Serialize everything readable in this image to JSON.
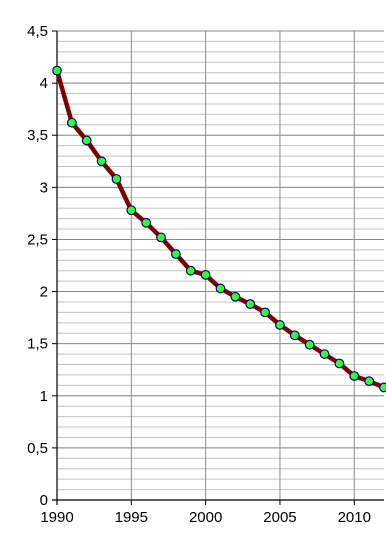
{
  "chart_data": {
    "type": "line",
    "title": "",
    "xlabel": "",
    "ylabel": "",
    "xlim": [
      1990,
      2012
    ],
    "ylim": [
      0,
      4.5
    ],
    "x_ticks": [
      {
        "value": 1990,
        "label": "1990"
      },
      {
        "value": 1995,
        "label": "1995"
      },
      {
        "value": 2000,
        "label": "2000"
      },
      {
        "value": 2005,
        "label": "2005"
      },
      {
        "value": 2010,
        "label": "2010"
      }
    ],
    "y_ticks": [
      {
        "value": 0,
        "label": "0"
      },
      {
        "value": 0.5,
        "label": "0,5"
      },
      {
        "value": 1,
        "label": "1"
      },
      {
        "value": 1.5,
        "label": "1,5"
      },
      {
        "value": 2,
        "label": "2"
      },
      {
        "value": 2.5,
        "label": "2,5"
      },
      {
        "value": 3,
        "label": "3"
      },
      {
        "value": 3.5,
        "label": "3,5"
      },
      {
        "value": 4,
        "label": "4"
      },
      {
        "value": 4.5,
        "label": "4,5"
      }
    ],
    "grid": {
      "major_x": true,
      "major_y": true,
      "minor_y": true,
      "minor_y_step": 0.1
    },
    "legend": "none",
    "series": [
      {
        "line_color": "#7a0000",
        "marker_fill": "#33ff33",
        "marker_edge": "#000080",
        "x": [
          1990,
          1991,
          1992,
          1993,
          1994,
          1995,
          1996,
          1997,
          1998,
          1999,
          2000,
          2001,
          2002,
          2003,
          2004,
          2005,
          2006,
          2007,
          2008,
          2009,
          2010,
          2011,
          2012
        ],
        "y": [
          4.12,
          3.62,
          3.45,
          3.25,
          3.08,
          2.78,
          2.66,
          2.52,
          2.36,
          2.2,
          2.16,
          2.03,
          1.95,
          1.88,
          1.8,
          1.68,
          1.58,
          1.49,
          1.4,
          1.31,
          1.19,
          1.14,
          1.08
        ]
      }
    ]
  }
}
